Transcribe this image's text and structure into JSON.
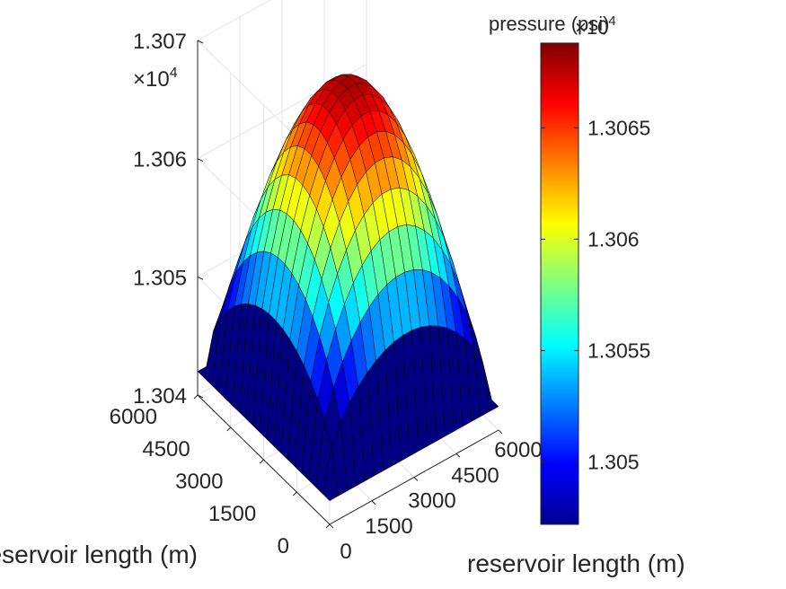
{
  "chart_data": {
    "type": "surface",
    "title": "",
    "x_axis": {
      "label": "reservoir length (m)",
      "ticks": [
        "0",
        "1500",
        "3000",
        "4500",
        "6000"
      ],
      "range": [
        0,
        6000
      ]
    },
    "y_axis": {
      "label": "reservoir length (m)",
      "ticks": [
        "0",
        "1500",
        "3000",
        "4500",
        "6000"
      ],
      "range": [
        0,
        6000
      ]
    },
    "z_axis": {
      "label": "",
      "multiplier": "×10",
      "exponent": "4",
      "ticks": [
        "1.304",
        "1.305",
        "1.306",
        "1.307"
      ],
      "range": [
        1.304,
        1.307
      ]
    },
    "colorbar": {
      "title": "pressure (psi)",
      "multiplier": "×10",
      "exponent": "4",
      "ticks": [
        "1.305",
        "1.3055",
        "1.306",
        "1.3065"
      ],
      "range": [
        1.30472,
        1.30688
      ],
      "colormap": "jet"
    },
    "surface": {
      "grid_size": [
        20,
        20
      ],
      "peak_value": 1.3068,
      "min_value": 1.3042,
      "shape": "pressure peaked at the reservoir center, falling toward the four corners",
      "edge_color": "#000000"
    },
    "grid": true
  }
}
